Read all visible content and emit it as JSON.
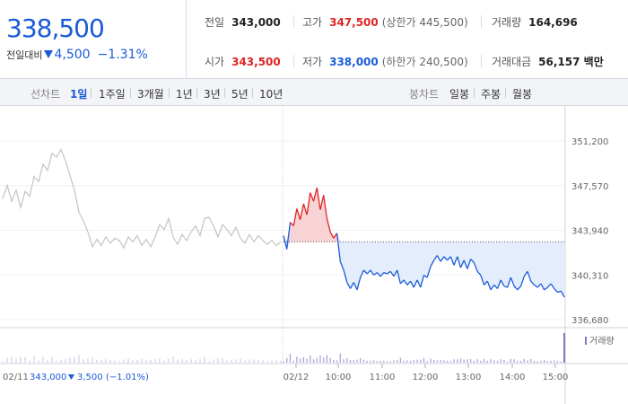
{
  "quote": {
    "current_price": "338,500",
    "change_label": "전일대비",
    "change_value": "4,500",
    "change_pct": "−1.31%"
  },
  "stats": {
    "prev_close": {
      "label": "전일",
      "value": "343,000"
    },
    "high": {
      "label": "고가",
      "value": "347,500",
      "sub": "(상한가 445,500)"
    },
    "volume": {
      "label": "거래량",
      "value": "164,696"
    },
    "open": {
      "label": "시가",
      "value": "343,500"
    },
    "low": {
      "label": "저가",
      "value": "338,000",
      "sub": "(하한가 240,500)"
    },
    "amount": {
      "label": "거래대금",
      "value": "56,157 백만"
    }
  },
  "tabs": {
    "line_label": "선차트",
    "line_items": [
      "1일",
      "1주일",
      "3개월",
      "1년",
      "3년",
      "5년",
      "10년"
    ],
    "active_index": 0,
    "candle_label": "봉차트",
    "candle_items": [
      "일봉",
      "주봉",
      "월봉"
    ]
  },
  "colors": {
    "accent_blue": "#1a5bd8",
    "up_red": "#e02424",
    "prev_day_gray": "#c4c4c4",
    "fill_blue": "#e3edfb",
    "fill_red": "#f7d3d6"
  },
  "chart_data": {
    "type": "line",
    "y_ticks": [
      "351,200",
      "347,570",
      "343,940",
      "340,310",
      "336,680"
    ],
    "ylim": [
      336680,
      351200
    ],
    "reference_price": 343000,
    "x_labels": [
      "02/12",
      "10:00",
      "11:00",
      "12:00",
      "13:00",
      "14:00",
      "15:00"
    ],
    "legend": "거래량",
    "prev_day_caption": {
      "date": "02/11",
      "close": "343,000",
      "change": "3,500",
      "pct": "(−1.01%)"
    },
    "series": [
      {
        "name": "",
        "session": "02/11",
        "values": [
          346500,
          347600,
          346300,
          347200,
          345800,
          347100,
          346700,
          348300,
          347900,
          349300,
          348800,
          350200,
          349900,
          350500,
          349600,
          348400,
          347200,
          345400,
          344700,
          343800,
          342600,
          343200,
          342700,
          343400,
          342900,
          343300,
          343100,
          342500,
          343400,
          343000,
          343500,
          342700,
          343200,
          342600,
          343400,
          344400,
          344000,
          344900,
          343400,
          342800,
          343600,
          343100,
          343800,
          344300,
          343500,
          344900,
          345000,
          344300,
          343400,
          344400,
          344000,
          343500,
          344200,
          343300,
          342900,
          343600,
          343000,
          343500,
          343100,
          342800,
          343100,
          342700,
          343000
        ]
      },
      {
        "name": "",
        "session": "02/12",
        "values": [
          343500,
          342400,
          344600,
          344300,
          345700,
          344800,
          346100,
          345200,
          347000,
          346300,
          347400,
          345600,
          346800,
          344900,
          343800,
          343300,
          343700,
          341400,
          340700,
          339700,
          339200,
          339700,
          339100,
          340100,
          340700,
          340400,
          340700,
          340300,
          340500,
          340200,
          340500,
          340400,
          340600,
          340200,
          340700,
          339600,
          339900,
          339500,
          339800,
          339300,
          339900,
          339300,
          340300,
          340100,
          341000,
          341500,
          341900,
          341400,
          341800,
          341500,
          341800,
          341100,
          341800,
          340900,
          341500,
          340800,
          341600,
          341300,
          340600,
          340300,
          339500,
          339800,
          339100,
          339500,
          339200,
          339900,
          339400,
          339300,
          340100,
          339400,
          339100,
          339400,
          340200,
          340600,
          339800,
          339500,
          339300,
          339600,
          339100,
          339300,
          339600,
          339200,
          338900,
          339000,
          338500
        ]
      }
    ]
  }
}
